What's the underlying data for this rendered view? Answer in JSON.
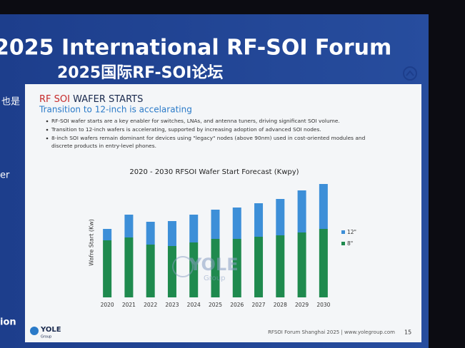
{
  "banner": {
    "title": "2025 International RF-SOI Forum",
    "subtitle": "2025国际RF-SOI论坛",
    "side_texts": [
      "也是",
      "er",
      "ion"
    ]
  },
  "slide": {
    "title_accent": "RF SOI",
    "title": "WAFER STARTS",
    "subtitle": "Transition to 12-inch is accelarating",
    "bullets": [
      "RF-SOI wafer starts are a key enabler for switches, LNAs, and antenna tuners, driving significant SOI volume.",
      "Transition to 12-inch wafers is accelerating, supported by increasing adoption of advanced SOI nodes.",
      "8-inch SOI wafers remain dominant for devices using \"legacy\" nodes (above 90nm) used in cost-oriented modules and",
      "discrete products in entry-level phones."
    ],
    "watermark": "YOLE",
    "watermark_sub": "Group",
    "logo": "YOLE",
    "logo_sub": "Group",
    "footer": "RFSOI Forum Shanghai 2025 | www.yolegroup.com",
    "page": "15"
  },
  "chart_data": {
    "type": "bar",
    "stacked": true,
    "title": "2020 - 2030 RFSOI Wafer Start Forecast (Kwpy)",
    "ylabel": "Wafre Start (Kw)",
    "categories": [
      "2020",
      "2021",
      "2022",
      "2023",
      "2024",
      "2025",
      "2026",
      "2027",
      "2028",
      "2029",
      "2030"
    ],
    "series": [
      {
        "name": "12\"",
        "color": "#3d8fd8",
        "values": [
          16,
          32,
          32,
          35,
          39,
          41,
          44,
          47,
          51,
          59,
          63
        ]
      },
      {
        "name": "8\"",
        "color": "#1f8a4e",
        "values": [
          80,
          84,
          74,
          72,
          77,
          82,
          82,
          85,
          87,
          91,
          96
        ]
      }
    ],
    "ylim": [
      0,
      170
    ],
    "legend": "right"
  }
}
